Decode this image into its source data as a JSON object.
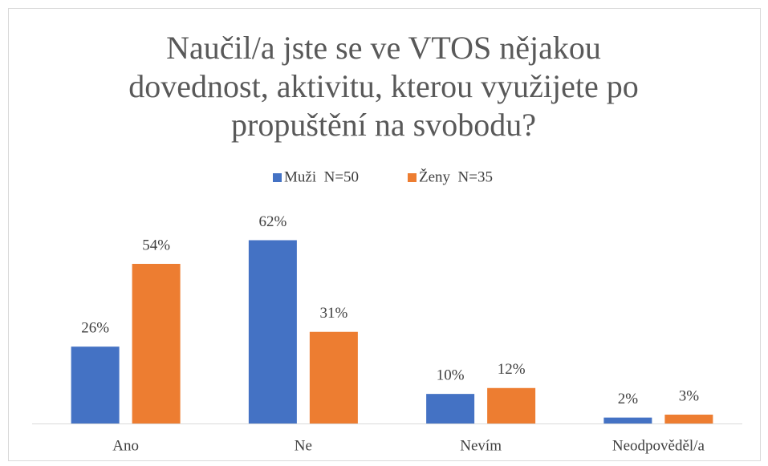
{
  "chart_data": {
    "type": "bar",
    "title": "Naučil/a jste se ve VTOS nějakou dovednost, aktivitu, kterou využijete po propuštění na svobodu?",
    "categories": [
      "Ano",
      "Ne",
      "Nevím",
      "Neodpověděl/a"
    ],
    "series": [
      {
        "name": "Muži  N=50",
        "color": "#4472c4",
        "values": [
          26,
          62,
          10,
          2
        ],
        "value_labels": [
          "26%",
          "62%",
          "10%",
          "2%"
        ]
      },
      {
        "name": "Ženy  N=35",
        "color": "#ed7d31",
        "values": [
          54,
          31,
          12,
          3
        ],
        "value_labels": [
          "54%",
          "31%",
          "12%",
          "3%"
        ]
      }
    ],
    "ylim": [
      0,
      70
    ],
    "legend": "top"
  }
}
